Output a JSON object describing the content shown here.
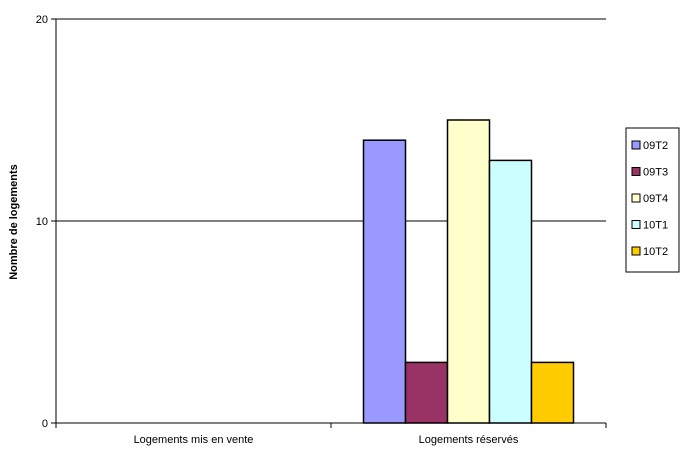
{
  "chart_data": {
    "type": "bar",
    "categories": [
      "Logements mis en vente",
      "Logements réservés"
    ],
    "series": [
      {
        "name": "09T2",
        "values": [
          0,
          14
        ],
        "color": "#9999ff"
      },
      {
        "name": "09T3",
        "values": [
          0,
          3
        ],
        "color": "#993366"
      },
      {
        "name": "09T4",
        "values": [
          0,
          15
        ],
        "color": "#ffffcc"
      },
      {
        "name": "10T1",
        "values": [
          0,
          13
        ],
        "color": "#ccffff"
      },
      {
        "name": "10T2",
        "values": [
          0,
          3
        ],
        "color": "#ffcc00"
      }
    ],
    "ylabel": "Nombre de logements",
    "ylim": [
      0,
      20
    ],
    "yticks": [
      0,
      10,
      20
    ],
    "grid": true,
    "legend": "right"
  }
}
